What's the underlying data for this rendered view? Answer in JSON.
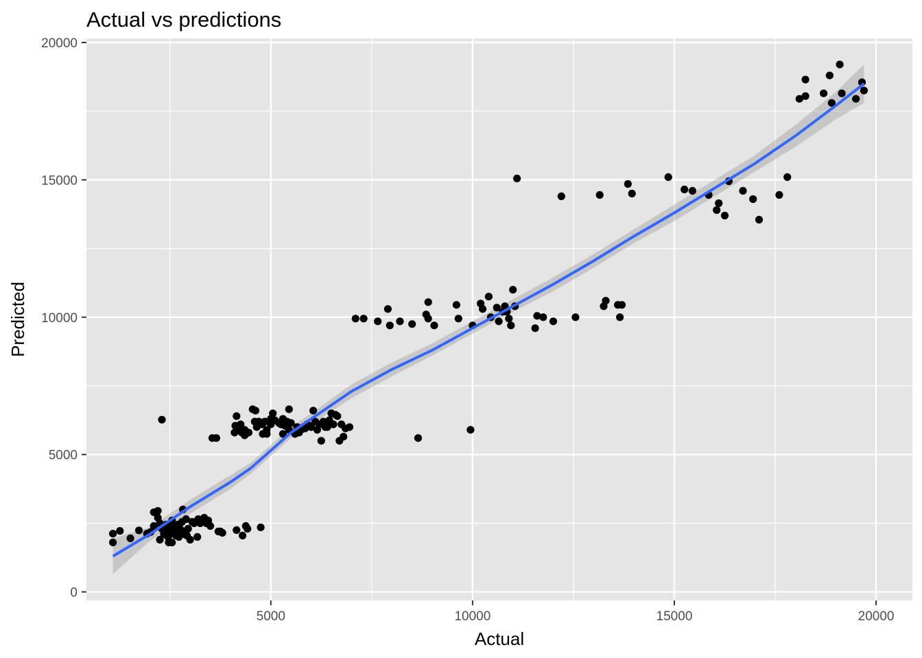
{
  "chart_data": {
    "type": "scatter",
    "title": "Actual vs predictions",
    "xlabel": "Actual",
    "ylabel": "Predicted",
    "xlim": [
      430,
      20900
    ],
    "ylim": [
      -310,
      20150
    ],
    "x_ticks": [
      5000,
      10000,
      15000,
      20000
    ],
    "y_ticks": [
      0,
      5000,
      10000,
      15000,
      20000
    ],
    "grid": true,
    "colors": {
      "panel": "#e5e5e5",
      "grid": "#ffffff",
      "points": "#000000",
      "smooth_line": "#3366ff",
      "ribbon": "#999999"
    },
    "points": [
      [
        1086,
        1800
      ],
      [
        1086,
        2120
      ],
      [
        1260,
        2220
      ],
      [
        1520,
        1950
      ],
      [
        1730,
        2240
      ],
      [
        1930,
        2120
      ],
      [
        2020,
        2180
      ],
      [
        2100,
        2400
      ],
      [
        2100,
        2900
      ],
      [
        2200,
        2950
      ],
      [
        2200,
        2700
      ],
      [
        2250,
        2500
      ],
      [
        2250,
        1900
      ],
      [
        2300,
        2300
      ],
      [
        2300,
        6270
      ],
      [
        2350,
        2100
      ],
      [
        2400,
        2450
      ],
      [
        2420,
        2200
      ],
      [
        2450,
        2000
      ],
      [
        2470,
        1800
      ],
      [
        2480,
        2350
      ],
      [
        2500,
        2100
      ],
      [
        2550,
        2600
      ],
      [
        2550,
        2400
      ],
      [
        2550,
        1800
      ],
      [
        2600,
        2200
      ],
      [
        2620,
        2300
      ],
      [
        2650,
        2050
      ],
      [
        2700,
        2450
      ],
      [
        2700,
        2200
      ],
      [
        2720,
        2000
      ],
      [
        2750,
        2300
      ],
      [
        2800,
        2100
      ],
      [
        2800,
        2550
      ],
      [
        2820,
        3000
      ],
      [
        2850,
        2200
      ],
      [
        2900,
        2650
      ],
      [
        2920,
        2050
      ],
      [
        2950,
        2300
      ],
      [
        3000,
        1900
      ],
      [
        3050,
        2550
      ],
      [
        3100,
        2500
      ],
      [
        3180,
        2000
      ],
      [
        3200,
        2650
      ],
      [
        3250,
        2500
      ],
      [
        3300,
        2600
      ],
      [
        3350,
        2700
      ],
      [
        3400,
        2500
      ],
      [
        3450,
        2600
      ],
      [
        3500,
        2400
      ],
      [
        3550,
        5600
      ],
      [
        3650,
        5600
      ],
      [
        3700,
        2200
      ],
      [
        3750,
        2200
      ],
      [
        3800,
        2150
      ],
      [
        4100,
        5800
      ],
      [
        4120,
        6050
      ],
      [
        4150,
        6400
      ],
      [
        4150,
        2250
      ],
      [
        4200,
        5950
      ],
      [
        4250,
        6100
      ],
      [
        4280,
        5800
      ],
      [
        4300,
        2050
      ],
      [
        4350,
        5700
      ],
      [
        4350,
        5900
      ],
      [
        4380,
        2400
      ],
      [
        4420,
        2300
      ],
      [
        4450,
        5800
      ],
      [
        4550,
        6650
      ],
      [
        4600,
        6200
      ],
      [
        4620,
        6600
      ],
      [
        4650,
        6000
      ],
      [
        4700,
        6200
      ],
      [
        4750,
        2350
      ],
      [
        4780,
        6100
      ],
      [
        4800,
        5750
      ],
      [
        4850,
        6200
      ],
      [
        4900,
        5750
      ],
      [
        4900,
        5900
      ],
      [
        5000,
        6100
      ],
      [
        5000,
        6300
      ],
      [
        5050,
        6500
      ],
      [
        5100,
        6250
      ],
      [
        5200,
        6150
      ],
      [
        5250,
        6100
      ],
      [
        5300,
        6300
      ],
      [
        5300,
        5750
      ],
      [
        5350,
        6050
      ],
      [
        5400,
        6200
      ],
      [
        5450,
        6650
      ],
      [
        5450,
        5900
      ],
      [
        5500,
        6150
      ],
      [
        5600,
        5750
      ],
      [
        5650,
        6000
      ],
      [
        5700,
        5800
      ],
      [
        5750,
        5900
      ],
      [
        5800,
        6000
      ],
      [
        5850,
        5950
      ],
      [
        5900,
        6100
      ],
      [
        5950,
        6050
      ],
      [
        6000,
        6000
      ],
      [
        6050,
        6600
      ],
      [
        6100,
        6200
      ],
      [
        6150,
        5900
      ],
      [
        6200,
        6100
      ],
      [
        6250,
        5500
      ],
      [
        6300,
        6200
      ],
      [
        6350,
        6000
      ],
      [
        6400,
        6000
      ],
      [
        6450,
        6250
      ],
      [
        6500,
        6500
      ],
      [
        6550,
        6100
      ],
      [
        6600,
        6450
      ],
      [
        6650,
        6400
      ],
      [
        6700,
        5500
      ],
      [
        6750,
        6100
      ],
      [
        6800,
        5650
      ],
      [
        6850,
        5950
      ],
      [
        6950,
        6000
      ],
      [
        7100,
        9950
      ],
      [
        7300,
        9950
      ],
      [
        7650,
        9850
      ],
      [
        7900,
        10300
      ],
      [
        7950,
        9700
      ],
      [
        8200,
        9850
      ],
      [
        8500,
        9750
      ],
      [
        8650,
        5600
      ],
      [
        8850,
        10100
      ],
      [
        8900,
        10550
      ],
      [
        8900,
        9950
      ],
      [
        9050,
        9700
      ],
      [
        9600,
        10450
      ],
      [
        9650,
        9950
      ],
      [
        9950,
        5900
      ],
      [
        10000,
        9700
      ],
      [
        10200,
        10500
      ],
      [
        10250,
        10300
      ],
      [
        10400,
        10750
      ],
      [
        10450,
        10000
      ],
      [
        10600,
        10350
      ],
      [
        10650,
        9850
      ],
      [
        10750,
        10200
      ],
      [
        10800,
        10400
      ],
      [
        10850,
        10200
      ],
      [
        10900,
        9950
      ],
      [
        10950,
        9700
      ],
      [
        11000,
        11000
      ],
      [
        11050,
        10400
      ],
      [
        11100,
        15050
      ],
      [
        11550,
        9600
      ],
      [
        11600,
        10050
      ],
      [
        11750,
        10000
      ],
      [
        12000,
        9850
      ],
      [
        12200,
        14400
      ],
      [
        12550,
        10000
      ],
      [
        13150,
        14450
      ],
      [
        13250,
        10400
      ],
      [
        13300,
        10600
      ],
      [
        13600,
        10450
      ],
      [
        13650,
        10000
      ],
      [
        13700,
        10450
      ],
      [
        13850,
        14850
      ],
      [
        13950,
        14500
      ],
      [
        14850,
        15100
      ],
      [
        15250,
        14650
      ],
      [
        15450,
        14600
      ],
      [
        15850,
        14450
      ],
      [
        16050,
        13900
      ],
      [
        16100,
        14150
      ],
      [
        16250,
        13700
      ],
      [
        16350,
        14950
      ],
      [
        16700,
        14600
      ],
      [
        16950,
        14300
      ],
      [
        17100,
        13550
      ],
      [
        17600,
        14450
      ],
      [
        17800,
        15100
      ],
      [
        18100,
        17950
      ],
      [
        18250,
        18650
      ],
      [
        18250,
        18050
      ],
      [
        18700,
        18150
      ],
      [
        18850,
        18800
      ],
      [
        18900,
        17800
      ],
      [
        19100,
        19200
      ],
      [
        19150,
        18150
      ],
      [
        19500,
        17950
      ],
      [
        19650,
        18550
      ],
      [
        19700,
        18250
      ]
    ],
    "smooth": {
      "x": [
        1086,
        2000,
        3000,
        4000,
        4500,
        5000,
        5500,
        6000,
        7000,
        8000,
        9000,
        10000,
        11000,
        12000,
        13000,
        14000,
        15000,
        16000,
        17000,
        18000,
        19000,
        19700
      ],
      "y": [
        1300,
        2100,
        3100,
        4000,
        4500,
        5150,
        5800,
        6300,
        7300,
        8100,
        8800,
        9600,
        10400,
        11200,
        12050,
        12950,
        13800,
        14700,
        15600,
        16600,
        17700,
        18500
      ],
      "ymin": [
        650,
        1850,
        2850,
        3750,
        4300,
        4950,
        5600,
        6100,
        7050,
        7850,
        8600,
        9400,
        10200,
        10950,
        11800,
        12700,
        13500,
        14400,
        15300,
        16200,
        17200,
        17800
      ],
      "ymax": [
        1950,
        2350,
        3350,
        4250,
        4700,
        5350,
        6000,
        6500,
        7550,
        8350,
        9050,
        9850,
        10650,
        11450,
        12300,
        13200,
        14100,
        15000,
        15900,
        17000,
        18200,
        19200
      ]
    }
  }
}
